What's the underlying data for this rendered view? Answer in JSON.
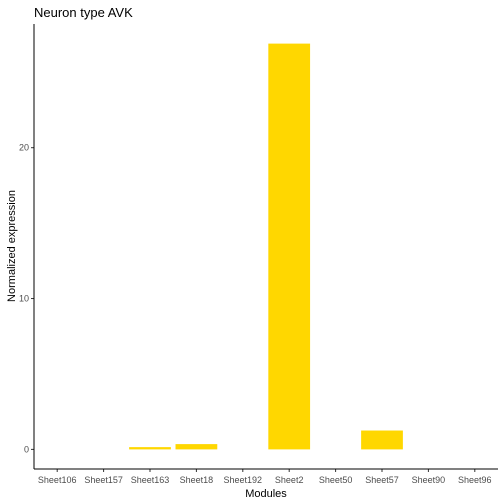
{
  "chart_data": {
    "type": "bar",
    "title": "Neuron type AVK",
    "xlabel": "Modules",
    "ylabel": "Normalized expression",
    "categories": [
      "Sheet106",
      "Sheet157",
      "Sheet163",
      "Sheet18",
      "Sheet192",
      "Sheet2",
      "Sheet50",
      "Sheet57",
      "Sheet90",
      "Sheet96"
    ],
    "values": [
      0,
      0,
      0.15,
      0.35,
      0,
      26.9,
      0,
      1.25,
      0,
      0
    ],
    "ylim": [
      -1.3,
      28.2
    ],
    "yticks": [
      0,
      10,
      20
    ],
    "bar_color": "#FFD700",
    "grid": false,
    "legend": "none"
  }
}
